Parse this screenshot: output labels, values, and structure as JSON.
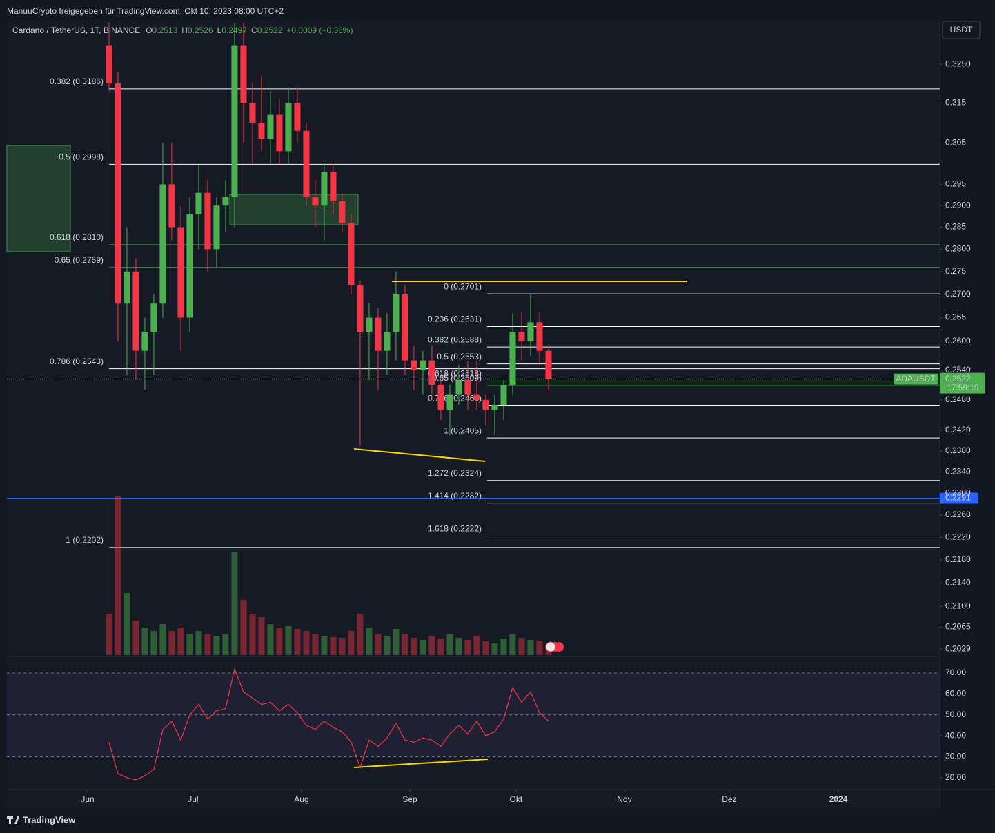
{
  "header": {
    "caption": "ManuuCrypto freigegeben für TradingView.com, Okt 10, 2023 08:00 UTC+2",
    "symbol": "Cardano / TetherUS, 1T, BINANCE",
    "ohlc": [
      [
        "O",
        "0.2513"
      ],
      [
        "H",
        "0.2526"
      ],
      [
        "L",
        "0.2497"
      ],
      [
        "C",
        "0.2522"
      ]
    ],
    "change": "+0.0009 (+0.36%)",
    "currency": "USDT"
  },
  "footer": {
    "brand": "TradingView"
  },
  "chart_data": {
    "type": "candlestick",
    "log_scale": true,
    "ylim": [
      0.2019,
      0.3366
    ],
    "yticks": [
      {
        "value": 0.325,
        "label": "0.3250"
      },
      0.315,
      0.305,
      0.295,
      {
        "value": 0.29,
        "label": "0.2900"
      },
      0.285,
      {
        "value": 0.28,
        "label": "0.2800"
      },
      0.275,
      {
        "value": 0.27,
        "label": "0.2700"
      },
      0.265,
      {
        "value": 0.26,
        "label": "0.2600"
      },
      {
        "value": 0.254,
        "label": "0.2540"
      },
      {
        "value": 0.248,
        "label": "0.2480"
      },
      {
        "value": 0.242,
        "label": "0.2420"
      },
      {
        "value": 0.238,
        "label": "0.2380"
      },
      {
        "value": 0.234,
        "label": "0.2340"
      },
      {
        "value": 0.23,
        "label": "0.2300"
      },
      {
        "value": 0.226,
        "label": "0.2260"
      },
      {
        "value": 0.222,
        "label": "0.2220"
      },
      {
        "value": 0.218,
        "label": "0.2180"
      },
      {
        "value": 0.214,
        "label": "0.2140"
      },
      {
        "value": 0.21,
        "label": "0.2100"
      },
      0.2065,
      0.2029
    ],
    "xlim": [
      -11.38,
      92.62
    ],
    "xticks": [
      {
        "value": -2.38,
        "label": "Jun"
      },
      {
        "value": 9.38,
        "label": "Jul"
      },
      {
        "value": 21.46,
        "label": "Aug"
      },
      {
        "value": 33.54,
        "label": "Sep"
      },
      {
        "value": 45.38,
        "label": "Okt"
      },
      {
        "value": 57.46,
        "label": "Nov"
      },
      {
        "value": 69.15,
        "label": "Dez"
      },
      {
        "value": 81.31,
        "label": "2024"
      }
    ],
    "up_color": "#4caf50",
    "down_color": "#f23645",
    "candles": {
      "open": [
        0.33,
        0.32,
        0.268,
        0.275,
        0.258,
        0.262,
        0.268,
        0.295,
        0.285,
        0.265,
        0.288,
        0.293,
        0.28,
        0.29,
        0.292,
        0.33,
        0.315,
        0.31,
        0.306,
        0.312,
        0.303,
        0.315,
        0.308,
        0.292,
        0.29,
        0.298,
        0.291,
        0.286,
        0.272,
        0.262,
        0.265,
        0.258,
        0.262,
        0.27,
        0.256,
        0.254,
        0.256,
        0.251,
        0.246,
        0.249,
        0.252,
        0.249,
        0.248,
        0.246,
        0.247,
        0.251,
        0.262,
        0.26,
        0.264,
        0.258
      ],
      "high": [
        0.336,
        0.323,
        0.285,
        0.278,
        0.265,
        0.27,
        0.305,
        0.305,
        0.29,
        0.292,
        0.3,
        0.296,
        0.292,
        0.296,
        0.336,
        0.336,
        0.32,
        0.322,
        0.318,
        0.316,
        0.319,
        0.319,
        0.31,
        0.296,
        0.3,
        0.3,
        0.293,
        0.288,
        0.273,
        0.268,
        0.267,
        0.266,
        0.275,
        0.272,
        0.259,
        0.258,
        0.259,
        0.252,
        0.251,
        0.255,
        0.256,
        0.256,
        0.249,
        0.249,
        0.252,
        0.266,
        0.266,
        0.27,
        0.266,
        0.259
      ],
      "low": [
        0.318,
        0.26,
        0.253,
        0.252,
        0.25,
        0.253,
        0.265,
        0.282,
        0.258,
        0.262,
        0.28,
        0.275,
        0.276,
        0.284,
        0.285,
        0.305,
        0.3,
        0.303,
        0.3,
        0.3,
        0.3,
        0.305,
        0.29,
        0.285,
        0.282,
        0.288,
        0.284,
        0.27,
        0.239,
        0.252,
        0.25,
        0.253,
        0.256,
        0.253,
        0.25,
        0.249,
        0.248,
        0.244,
        0.241,
        0.247,
        0.246,
        0.246,
        0.243,
        0.241,
        0.244,
        0.249,
        0.256,
        0.257,
        0.255,
        0.25
      ],
      "close": [
        0.32,
        0.268,
        0.275,
        0.258,
        0.262,
        0.268,
        0.295,
        0.285,
        0.265,
        0.288,
        0.293,
        0.28,
        0.29,
        0.292,
        0.33,
        0.315,
        0.31,
        0.306,
        0.312,
        0.303,
        0.315,
        0.308,
        0.292,
        0.29,
        0.298,
        0.291,
        0.286,
        0.272,
        0.262,
        0.265,
        0.258,
        0.262,
        0.27,
        0.256,
        0.254,
        0.256,
        0.251,
        0.246,
        0.249,
        0.252,
        0.249,
        0.248,
        0.246,
        0.247,
        0.251,
        0.262,
        0.26,
        0.264,
        0.258,
        0.2522
      ]
    },
    "volume": [
      60,
      230,
      90,
      50,
      40,
      35,
      45,
      35,
      40,
      30,
      35,
      30,
      28,
      30,
      150,
      80,
      60,
      55,
      45,
      40,
      42,
      38,
      35,
      30,
      28,
      26,
      25,
      35,
      60,
      40,
      30,
      28,
      38,
      30,
      25,
      22,
      28,
      24,
      30,
      25,
      22,
      28,
      20,
      18,
      24,
      30,
      25,
      22,
      20,
      15
    ],
    "fib_left": [
      {
        "label": "0.382 (0.3186)",
        "price": 0.3186,
        "color": "#ffffff"
      },
      {
        "label": "0.5 (0.2998)",
        "price": 0.2998,
        "color": "#ffffff"
      },
      {
        "label": "0.618 (0.2810)",
        "price": 0.281,
        "color": "#4caf50"
      },
      {
        "label": "0.65 (0.2759)",
        "price": 0.2759,
        "color": "#4caf50"
      },
      {
        "label": "0.786 (0.2543)",
        "price": 0.2543,
        "color": "#ffffff"
      },
      {
        "label": "1 (0.2202)",
        "price": 0.2202,
        "color": "#ffffff"
      }
    ],
    "fib_right": [
      {
        "label": "0 (0.2701)",
        "price": 0.2701,
        "color": "#ffffff"
      },
      {
        "label": "0.236 (0.2631)",
        "price": 0.2631,
        "color": "#ffffff"
      },
      {
        "label": "0.382 (0.2588)",
        "price": 0.2588,
        "color": "#ffffff"
      },
      {
        "label": "0.5 (0.2553)",
        "price": 0.2553,
        "color": "#ffffff"
      },
      {
        "label": "0.618 (0.2518)",
        "price": 0.2518,
        "color": "#4caf50"
      },
      {
        "label": "0.65 (0.2509)",
        "price": 0.2509,
        "color": "#4caf50"
      },
      {
        "label": "0.786 (0.2468)",
        "price": 0.2468,
        "color": "#ffffff"
      },
      {
        "label": "1 (0.2405)",
        "price": 0.2405,
        "color": "#ffffff"
      },
      {
        "label": "1.272 (0.2324)",
        "price": 0.2324,
        "color": "#ffffff"
      },
      {
        "label": "1.414 (0.2282)",
        "price": 0.2282,
        "color": "#ffffff"
      },
      {
        "label": "1.618 (0.2222)",
        "price": 0.2222,
        "color": "#ffffff"
      }
    ],
    "horizontal_line": {
      "price": 0.2291,
      "color": "#2962ff"
    },
    "last_price": {
      "symbol": "ADAUSDT",
      "price": 0.2522,
      "countdown": "17:59:19",
      "color": "#4caf50"
    },
    "rsi": {
      "color": "#f23645",
      "ylim": [
        14.4,
        76.9
      ],
      "yticks": [
        {
          "value": 70,
          "label": "70.00"
        },
        {
          "value": 60,
          "label": "60.00"
        },
        {
          "value": 50,
          "label": "50.00"
        },
        {
          "value": 40,
          "label": "40.00"
        },
        {
          "value": 30,
          "label": "30.00"
        },
        {
          "value": 20,
          "label": "20.00"
        }
      ],
      "values": [
        37,
        22,
        20,
        19,
        21,
        24,
        43,
        47,
        38,
        50,
        55,
        48,
        52,
        53,
        72,
        61,
        58,
        55,
        56,
        52,
        55,
        51,
        45,
        43,
        47,
        44,
        42,
        37,
        25,
        38,
        35,
        39,
        46,
        38,
        37,
        39,
        38,
        35,
        41,
        45,
        41,
        47,
        40,
        42,
        48,
        63,
        56,
        61,
        51,
        47
      ]
    }
  }
}
